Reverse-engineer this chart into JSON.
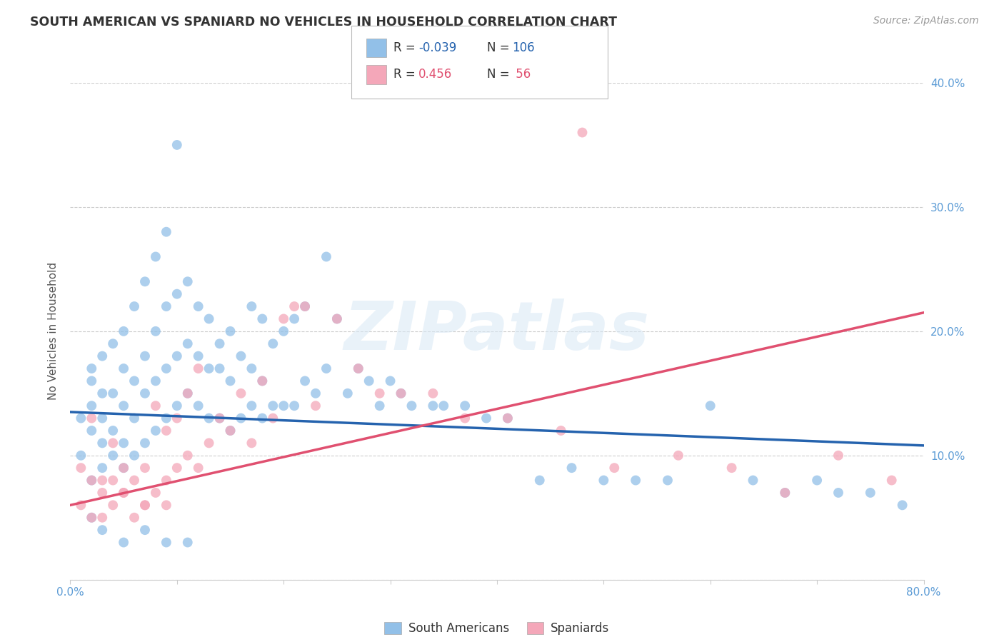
{
  "title": "SOUTH AMERICAN VS SPANIARD NO VEHICLES IN HOUSEHOLD CORRELATION CHART",
  "source": "Source: ZipAtlas.com",
  "ylabel": "No Vehicles in Household",
  "xlim": [
    0.0,
    0.8
  ],
  "ylim": [
    0.0,
    0.4
  ],
  "xticks": [
    0.0,
    0.1,
    0.2,
    0.3,
    0.4,
    0.5,
    0.6,
    0.7,
    0.8
  ],
  "xticklabels": [
    "0.0%",
    "",
    "",
    "",
    "",
    "",
    "",
    "",
    "80.0%"
  ],
  "yticks": [
    0.0,
    0.1,
    0.2,
    0.3,
    0.4
  ],
  "yticklabels_right": [
    "",
    "10.0%",
    "20.0%",
    "30.0%",
    "40.0%"
  ],
  "blue_R": "-0.039",
  "blue_N": "106",
  "pink_R": "0.456",
  "pink_N": "56",
  "blue_color": "#92C0E8",
  "pink_color": "#F4A7B9",
  "blue_line_color": "#2563AE",
  "pink_line_color": "#E05070",
  "title_color": "#333333",
  "axis_tick_color": "#5B9BD5",
  "grid_color": "#CCCCCC",
  "blue_line_x0": 0.0,
  "blue_line_x1": 0.8,
  "blue_line_y0": 0.135,
  "blue_line_y1": 0.108,
  "pink_line_x0": 0.0,
  "pink_line_x1": 0.8,
  "pink_line_y0": 0.06,
  "pink_line_y1": 0.215,
  "blue_scatter_x": [
    0.01,
    0.01,
    0.02,
    0.02,
    0.02,
    0.02,
    0.02,
    0.03,
    0.03,
    0.03,
    0.03,
    0.03,
    0.04,
    0.04,
    0.04,
    0.04,
    0.05,
    0.05,
    0.05,
    0.05,
    0.05,
    0.06,
    0.06,
    0.06,
    0.06,
    0.07,
    0.07,
    0.07,
    0.07,
    0.08,
    0.08,
    0.08,
    0.08,
    0.09,
    0.09,
    0.09,
    0.09,
    0.1,
    0.1,
    0.1,
    0.1,
    0.11,
    0.11,
    0.11,
    0.12,
    0.12,
    0.12,
    0.13,
    0.13,
    0.13,
    0.14,
    0.14,
    0.14,
    0.15,
    0.15,
    0.15,
    0.16,
    0.16,
    0.17,
    0.17,
    0.17,
    0.18,
    0.18,
    0.18,
    0.19,
    0.19,
    0.2,
    0.2,
    0.21,
    0.21,
    0.22,
    0.22,
    0.23,
    0.24,
    0.24,
    0.25,
    0.26,
    0.27,
    0.28,
    0.29,
    0.3,
    0.31,
    0.32,
    0.34,
    0.35,
    0.37,
    0.39,
    0.41,
    0.44,
    0.47,
    0.5,
    0.53,
    0.56,
    0.6,
    0.64,
    0.67,
    0.7,
    0.72,
    0.75,
    0.78,
    0.02,
    0.03,
    0.05,
    0.07,
    0.09,
    0.11
  ],
  "blue_scatter_y": [
    0.1,
    0.13,
    0.08,
    0.12,
    0.14,
    0.16,
    0.17,
    0.09,
    0.11,
    0.13,
    0.15,
    0.18,
    0.1,
    0.12,
    0.15,
    0.19,
    0.09,
    0.11,
    0.14,
    0.17,
    0.2,
    0.1,
    0.13,
    0.16,
    0.22,
    0.11,
    0.15,
    0.18,
    0.24,
    0.12,
    0.16,
    0.2,
    0.26,
    0.13,
    0.17,
    0.22,
    0.28,
    0.14,
    0.18,
    0.23,
    0.35,
    0.15,
    0.19,
    0.24,
    0.14,
    0.18,
    0.22,
    0.13,
    0.17,
    0.21,
    0.13,
    0.17,
    0.19,
    0.12,
    0.16,
    0.2,
    0.13,
    0.18,
    0.14,
    0.17,
    0.22,
    0.13,
    0.16,
    0.21,
    0.14,
    0.19,
    0.14,
    0.2,
    0.14,
    0.21,
    0.16,
    0.22,
    0.15,
    0.17,
    0.26,
    0.21,
    0.15,
    0.17,
    0.16,
    0.14,
    0.16,
    0.15,
    0.14,
    0.14,
    0.14,
    0.14,
    0.13,
    0.13,
    0.08,
    0.09,
    0.08,
    0.08,
    0.08,
    0.14,
    0.08,
    0.07,
    0.08,
    0.07,
    0.07,
    0.06,
    0.05,
    0.04,
    0.03,
    0.04,
    0.03,
    0.03
  ],
  "pink_scatter_x": [
    0.01,
    0.01,
    0.02,
    0.02,
    0.03,
    0.03,
    0.04,
    0.04,
    0.04,
    0.05,
    0.05,
    0.06,
    0.06,
    0.07,
    0.07,
    0.08,
    0.08,
    0.09,
    0.09,
    0.1,
    0.1,
    0.11,
    0.11,
    0.12,
    0.12,
    0.13,
    0.14,
    0.15,
    0.16,
    0.17,
    0.18,
    0.19,
    0.2,
    0.21,
    0.22,
    0.23,
    0.25,
    0.27,
    0.29,
    0.31,
    0.34,
    0.37,
    0.41,
    0.46,
    0.51,
    0.57,
    0.62,
    0.67,
    0.72,
    0.77,
    0.02,
    0.03,
    0.05,
    0.07,
    0.09,
    0.48
  ],
  "pink_scatter_y": [
    0.06,
    0.09,
    0.05,
    0.08,
    0.05,
    0.08,
    0.06,
    0.08,
    0.11,
    0.07,
    0.09,
    0.05,
    0.08,
    0.06,
    0.09,
    0.07,
    0.14,
    0.08,
    0.12,
    0.09,
    0.13,
    0.1,
    0.15,
    0.09,
    0.17,
    0.11,
    0.13,
    0.12,
    0.15,
    0.11,
    0.16,
    0.13,
    0.21,
    0.22,
    0.22,
    0.14,
    0.21,
    0.17,
    0.15,
    0.15,
    0.15,
    0.13,
    0.13,
    0.12,
    0.09,
    0.1,
    0.09,
    0.07,
    0.1,
    0.08,
    0.13,
    0.07,
    0.07,
    0.06,
    0.06,
    0.36
  ]
}
